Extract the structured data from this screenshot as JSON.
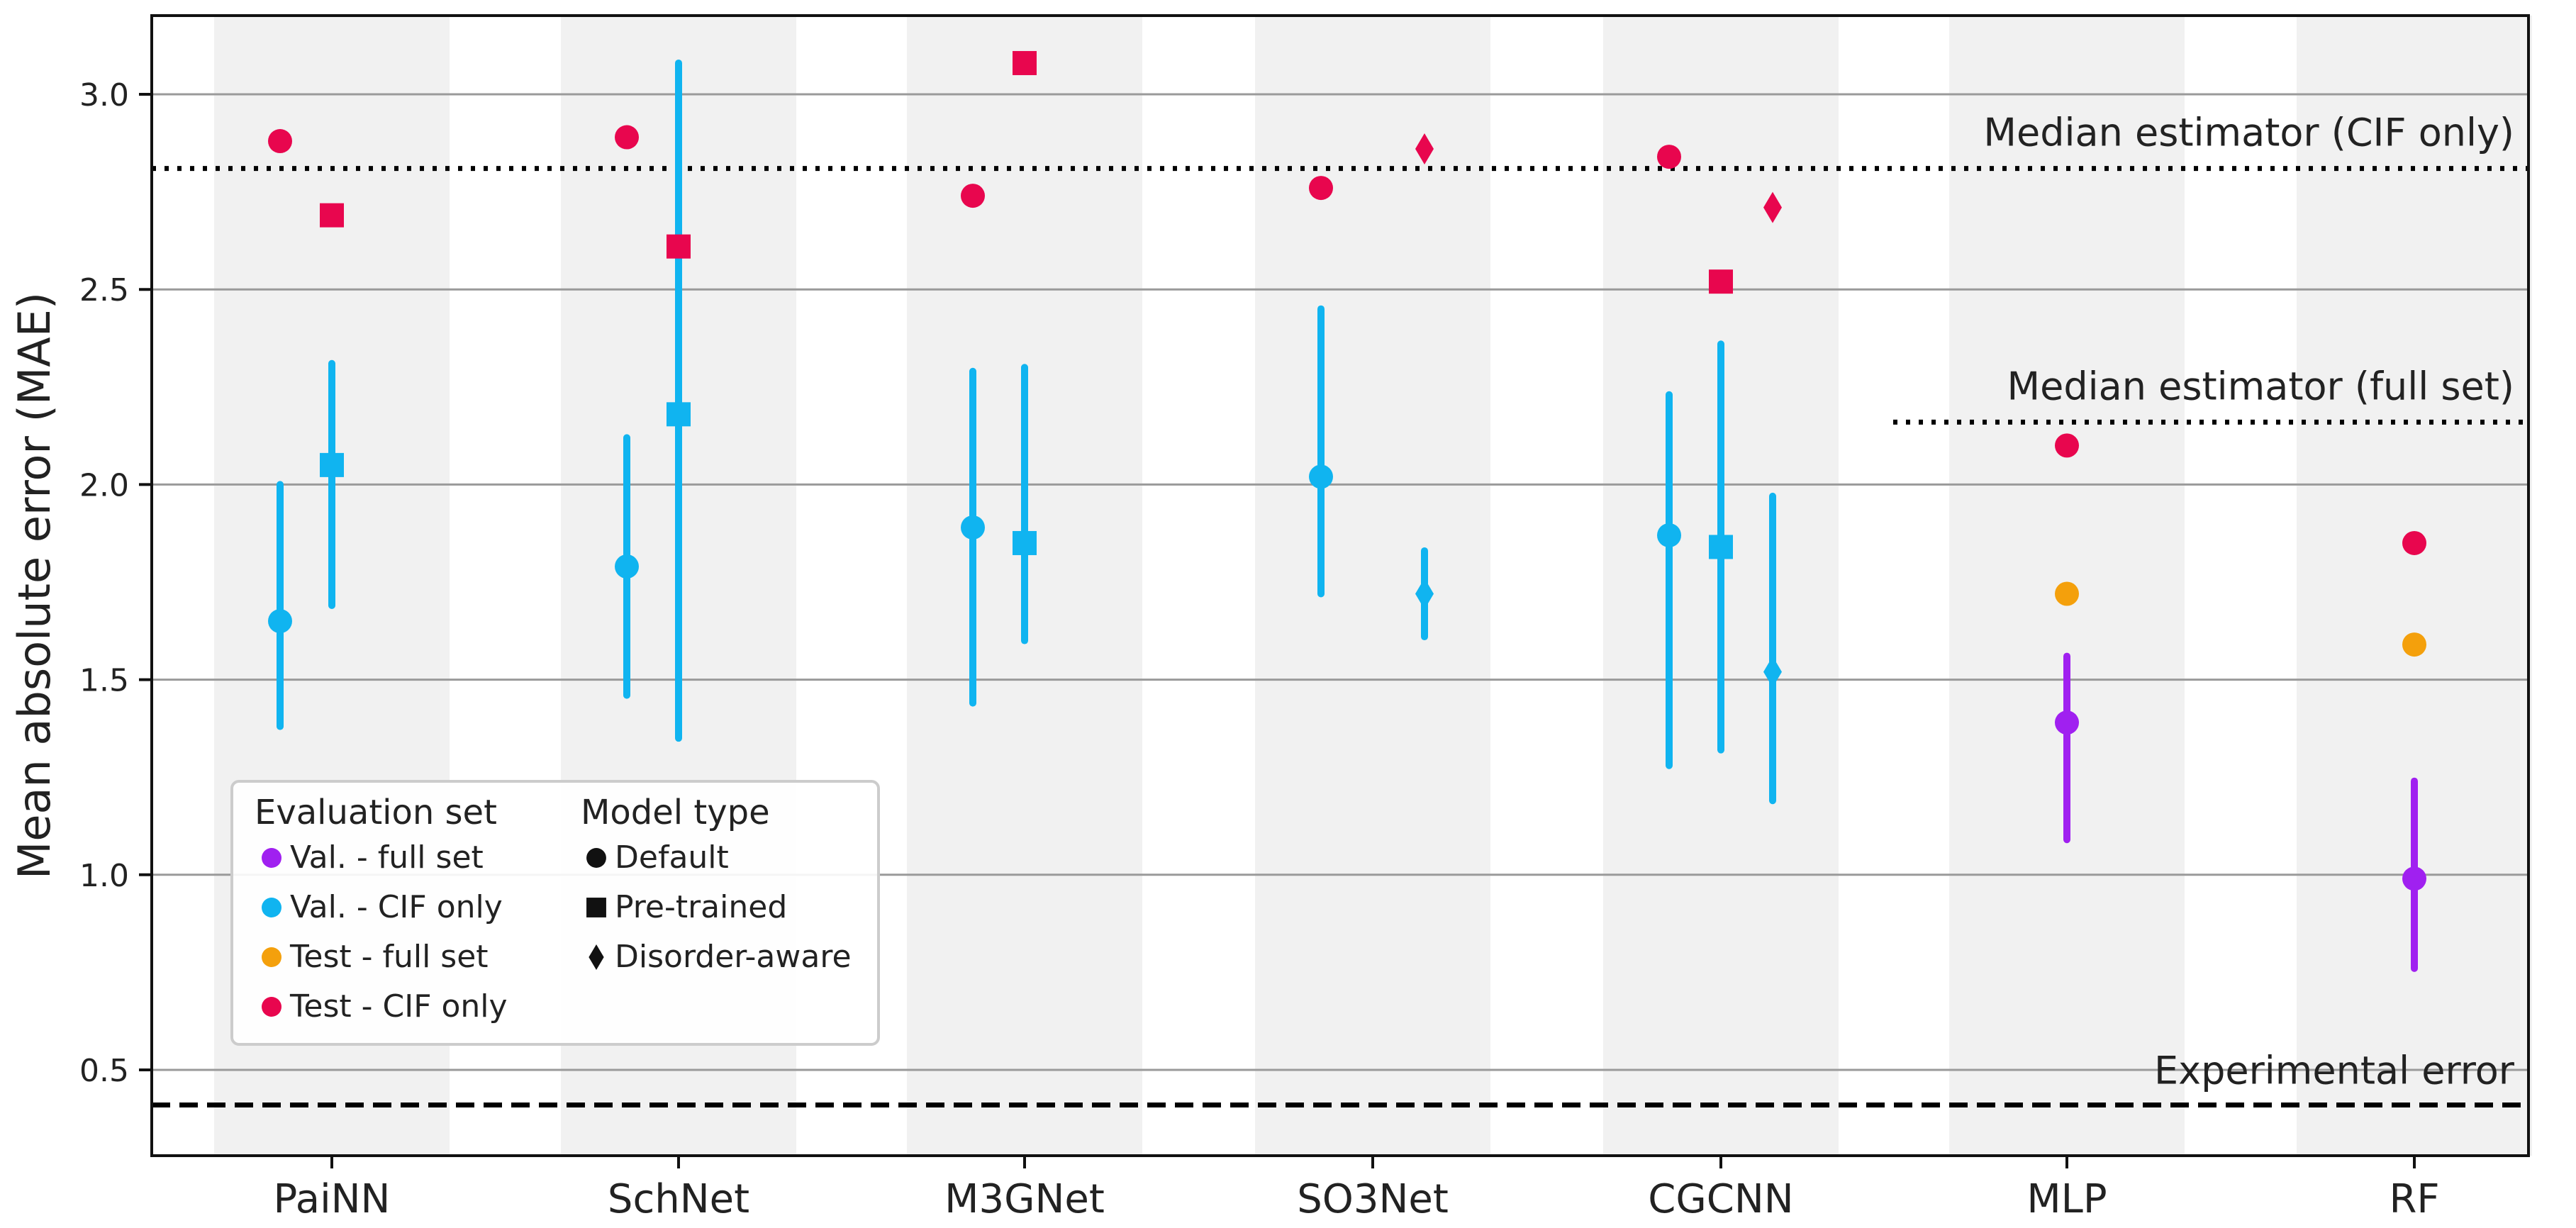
{
  "chart_data": {
    "type": "scatter",
    "ylabel": "Mean absolute error (MAE)",
    "xlabel": "",
    "ylim": [
      0.2,
      3.2
    ],
    "yticks": [
      "0.5",
      "1.0",
      "1.5",
      "2.0",
      "2.5",
      "3.0"
    ],
    "grid": "horizontal",
    "categories": [
      "PaiNN",
      "SchNet",
      "M3GNet",
      "SO3Net",
      "CGCNN",
      "MLP",
      "RF"
    ],
    "colors": {
      "val_full": "#a020f0",
      "val_cif": "#10b4f0",
      "test_full": "#f4a00c",
      "test_cif": "#e8064e",
      "band": "#f1f1f1"
    },
    "points": [
      {
        "category": "PaiNN",
        "model": "Default",
        "set": "Val. - CIF only",
        "y": 1.65,
        "err_low": 1.38,
        "err_high": 2.0
      },
      {
        "category": "PaiNN",
        "model": "Default",
        "set": "Test - CIF only",
        "y": 2.88
      },
      {
        "category": "PaiNN",
        "model": "Pre-trained",
        "set": "Val. - CIF only",
        "y": 2.05,
        "err_low": 1.69,
        "err_high": 2.31
      },
      {
        "category": "PaiNN",
        "model": "Pre-trained",
        "set": "Test - CIF only",
        "y": 2.69
      },
      {
        "category": "SchNet",
        "model": "Default",
        "set": "Val. - CIF only",
        "y": 1.79,
        "err_low": 1.46,
        "err_high": 2.12
      },
      {
        "category": "SchNet",
        "model": "Default",
        "set": "Test - CIF only",
        "y": 2.89
      },
      {
        "category": "SchNet",
        "model": "Pre-trained",
        "set": "Val. - CIF only",
        "y": 2.18,
        "err_low": 1.35,
        "err_high": 3.08
      },
      {
        "category": "SchNet",
        "model": "Pre-trained",
        "set": "Test - CIF only",
        "y": 2.61
      },
      {
        "category": "M3GNet",
        "model": "Default",
        "set": "Val. - CIF only",
        "y": 1.89,
        "err_low": 1.44,
        "err_high": 2.29
      },
      {
        "category": "M3GNet",
        "model": "Default",
        "set": "Test - CIF only",
        "y": 2.74
      },
      {
        "category": "M3GNet",
        "model": "Pre-trained",
        "set": "Val. - CIF only",
        "y": 1.85,
        "err_low": 1.6,
        "err_high": 2.3
      },
      {
        "category": "M3GNet",
        "model": "Pre-trained",
        "set": "Test - CIF only",
        "y": 3.08
      },
      {
        "category": "SO3Net",
        "model": "Default",
        "set": "Val. - CIF only",
        "y": 2.02,
        "err_low": 1.72,
        "err_high": 2.45
      },
      {
        "category": "SO3Net",
        "model": "Default",
        "set": "Test - CIF only",
        "y": 2.76
      },
      {
        "category": "SO3Net",
        "model": "Disorder-aware",
        "set": "Val. - CIF only",
        "y": 1.72,
        "err_low": 1.61,
        "err_high": 1.83
      },
      {
        "category": "SO3Net",
        "model": "Disorder-aware",
        "set": "Test - CIF only",
        "y": 2.86
      },
      {
        "category": "CGCNN",
        "model": "Default",
        "set": "Val. - CIF only",
        "y": 1.87,
        "err_low": 1.28,
        "err_high": 2.23
      },
      {
        "category": "CGCNN",
        "model": "Default",
        "set": "Test - CIF only",
        "y": 2.84
      },
      {
        "category": "CGCNN",
        "model": "Pre-trained",
        "set": "Val. - CIF only",
        "y": 1.84,
        "err_low": 1.32,
        "err_high": 2.36
      },
      {
        "category": "CGCNN",
        "model": "Pre-trained",
        "set": "Test - CIF only",
        "y": 2.52
      },
      {
        "category": "CGCNN",
        "model": "Disorder-aware",
        "set": "Val. - CIF only",
        "y": 1.52,
        "err_low": 1.19,
        "err_high": 1.97
      },
      {
        "category": "CGCNN",
        "model": "Disorder-aware",
        "set": "Test - CIF only",
        "y": 2.71
      },
      {
        "category": "MLP",
        "model": "Default",
        "set": "Val. - full set",
        "y": 1.39,
        "err_low": 1.09,
        "err_high": 1.56
      },
      {
        "category": "MLP",
        "model": "Default",
        "set": "Test - full set",
        "y": 1.72
      },
      {
        "category": "MLP",
        "model": "Default",
        "set": "Test - CIF only",
        "y": 2.1
      },
      {
        "category": "RF",
        "model": "Default",
        "set": "Val. - full set",
        "y": 0.99,
        "err_low": 0.76,
        "err_high": 1.24
      },
      {
        "category": "RF",
        "model": "Default",
        "set": "Test - full set",
        "y": 1.59
      },
      {
        "category": "RF",
        "model": "Default",
        "set": "Test - CIF only",
        "y": 1.85
      }
    ],
    "reference_lines": [
      {
        "label": "Median estimator (CIF only)",
        "y": 2.81,
        "style": "dotted",
        "span": "full"
      },
      {
        "label": "Median estimator (full set)",
        "y": 2.16,
        "style": "dotted",
        "span": "MLP-RF"
      },
      {
        "label": "Experimental error",
        "y": 0.41,
        "style": "dashed",
        "span": "full"
      }
    ],
    "legend": {
      "placement": "lower-left",
      "eval_title": "Evaluation set",
      "eval_items": [
        {
          "label": "Val. - full set",
          "color": "#a020f0"
        },
        {
          "label": "Val. - CIF only",
          "color": "#10b4f0"
        },
        {
          "label": "Test - full set",
          "color": "#f4a00c"
        },
        {
          "label": "Test - CIF only",
          "color": "#e8064e"
        }
      ],
      "model_title": "Model type",
      "model_items": [
        {
          "label": "Default",
          "marker": "circle"
        },
        {
          "label": "Pre-trained",
          "marker": "square"
        },
        {
          "label": "Disorder-aware",
          "marker": "diamond"
        }
      ]
    }
  }
}
